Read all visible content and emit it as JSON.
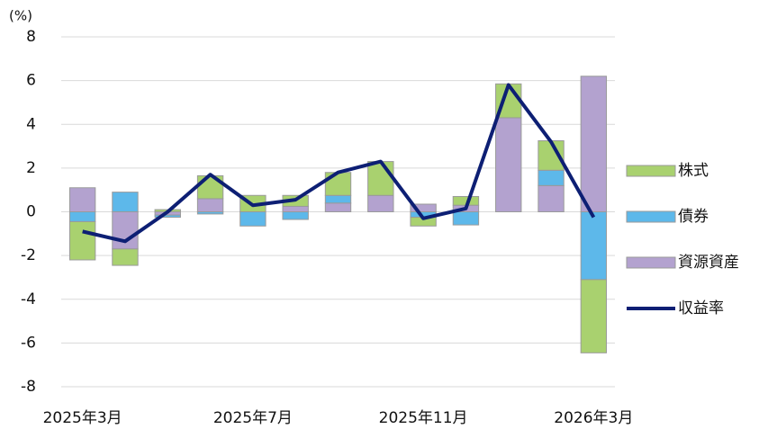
{
  "chart_data": {
    "type": "bar",
    "stacked": true,
    "y_label": "(%)",
    "categories": [
      "2025年3月",
      null,
      null,
      null,
      "2025年7月",
      null,
      null,
      null,
      "2025年11月",
      null,
      null,
      null,
      "2026年3月"
    ],
    "series": [
      {
        "name": "資源資産",
        "color": "#b3a2cf",
        "values": [
          1.1,
          -1.7,
          -0.15,
          0.6,
          0,
          0.25,
          0.4,
          0.75,
          0.35,
          0.3,
          4.3,
          1.2,
          6.2
        ]
      },
      {
        "name": "債券",
        "color": "#5db8ea",
        "values": [
          -0.45,
          0.9,
          -0.1,
          -0.1,
          -0.65,
          -0.35,
          0.35,
          0,
          -0.25,
          -0.6,
          0,
          0.7,
          -3.1
        ]
      },
      {
        "name": "株式",
        "color": "#a9d16f",
        "values": [
          -1.75,
          -0.75,
          0.1,
          1.05,
          0.75,
          0.5,
          1.05,
          1.55,
          -0.4,
          0.4,
          1.55,
          1.35,
          -3.35
        ]
      }
    ],
    "line": {
      "type": "line",
      "name": "収益率",
      "color": "#0d1f74",
      "values": [
        -0.9,
        -1.35,
        0,
        1.7,
        0.3,
        0.55,
        1.8,
        2.3,
        -0.3,
        0.15,
        5.8,
        3.2,
        -0.25
      ]
    },
    "ylim": [
      -8,
      8
    ],
    "yticks": [
      -8,
      -6,
      -4,
      -2,
      0,
      2,
      4,
      6,
      8
    ],
    "grid": true,
    "legend": "right"
  }
}
